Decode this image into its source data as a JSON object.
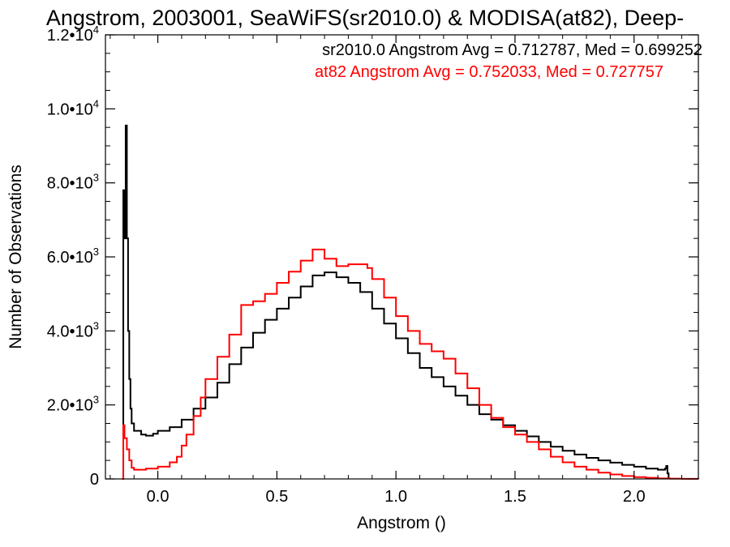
{
  "chart_data": {
    "type": "line",
    "title": "Angstrom, 2003001, SeaWiFS(sr2010.0) & MODISA(at82), Deep-",
    "xlabel": "Angstrom ()",
    "ylabel": "Number of Observations",
    "xlim": [
      -0.22,
      2.27
    ],
    "ylim": [
      0,
      12000
    ],
    "x_ticks": [
      {
        "value": 0.0,
        "label": "0.0"
      },
      {
        "value": 0.5,
        "label": "0.5"
      },
      {
        "value": 1.0,
        "label": "1.0"
      },
      {
        "value": 1.5,
        "label": "1.5"
      },
      {
        "value": 2.0,
        "label": "2.0"
      }
    ],
    "y_ticks": [
      {
        "value": 0,
        "label": "0",
        "mantissa": "",
        "exponent": ""
      },
      {
        "value": 2000,
        "label": "",
        "mantissa": "2.0•10",
        "exponent": "3"
      },
      {
        "value": 4000,
        "label": "",
        "mantissa": "4.0•10",
        "exponent": "3"
      },
      {
        "value": 6000,
        "label": "",
        "mantissa": "6.0•10",
        "exponent": "3"
      },
      {
        "value": 8000,
        "label": "",
        "mantissa": "8.0•10",
        "exponent": "3"
      },
      {
        "value": 10000,
        "label": "",
        "mantissa": "1.0•10",
        "exponent": "4"
      },
      {
        "value": 12000,
        "label": "",
        "mantissa": "1.2•10",
        "exponent": "4"
      }
    ],
    "grid": false,
    "legend_position": "top-right",
    "annotations": [
      {
        "text": "sr2010.0 Angstrom Avg = 0.712787, Med = 0.699252",
        "color": "#000000"
      },
      {
        "text": "at82 Angstrom Avg = 0.752033, Med = 0.727757",
        "color": "#ff0000"
      }
    ],
    "series": [
      {
        "color": "#000000",
        "step": true,
        "points": [
          [
            -0.15,
            0
          ],
          [
            -0.145,
            7800
          ],
          [
            -0.14,
            6500
          ],
          [
            -0.135,
            9550
          ],
          [
            -0.13,
            6500
          ],
          [
            -0.125,
            4000
          ],
          [
            -0.12,
            2700
          ],
          [
            -0.115,
            1900
          ],
          [
            -0.11,
            1500
          ],
          [
            -0.1,
            1300
          ],
          [
            -0.07,
            1200
          ],
          [
            -0.05,
            1170
          ],
          [
            -0.02,
            1220
          ],
          [
            0.0,
            1300
          ],
          [
            0.05,
            1400
          ],
          [
            0.1,
            1600
          ],
          [
            0.15,
            1900
          ],
          [
            0.2,
            2200
          ],
          [
            0.25,
            2600
          ],
          [
            0.3,
            3100
          ],
          [
            0.35,
            3550
          ],
          [
            0.4,
            3950
          ],
          [
            0.45,
            4300
          ],
          [
            0.5,
            4600
          ],
          [
            0.55,
            4900
          ],
          [
            0.6,
            5200
          ],
          [
            0.65,
            5500
          ],
          [
            0.7,
            5580
          ],
          [
            0.75,
            5450
          ],
          [
            0.8,
            5300
          ],
          [
            0.85,
            5050
          ],
          [
            0.9,
            4600
          ],
          [
            0.95,
            4200
          ],
          [
            1.0,
            3800
          ],
          [
            1.05,
            3400
          ],
          [
            1.1,
            3000
          ],
          [
            1.15,
            2750
          ],
          [
            1.2,
            2500
          ],
          [
            1.25,
            2250
          ],
          [
            1.3,
            2000
          ],
          [
            1.35,
            1750
          ],
          [
            1.4,
            1600
          ],
          [
            1.45,
            1450
          ],
          [
            1.5,
            1300
          ],
          [
            1.55,
            1150
          ],
          [
            1.6,
            1000
          ],
          [
            1.65,
            870
          ],
          [
            1.7,
            760
          ],
          [
            1.75,
            660
          ],
          [
            1.8,
            570
          ],
          [
            1.85,
            500
          ],
          [
            1.9,
            440
          ],
          [
            1.95,
            380
          ],
          [
            2.0,
            330
          ],
          [
            2.05,
            280
          ],
          [
            2.1,
            250
          ],
          [
            2.13,
            280
          ],
          [
            2.135,
            350
          ],
          [
            2.14,
            150
          ],
          [
            2.145,
            0
          ]
        ]
      },
      {
        "color": "#ff0000",
        "step": true,
        "points": [
          [
            -0.15,
            0
          ],
          [
            -0.145,
            1450
          ],
          [
            -0.14,
            1100
          ],
          [
            -0.13,
            800
          ],
          [
            -0.12,
            500
          ],
          [
            -0.11,
            300
          ],
          [
            -0.1,
            250
          ],
          [
            -0.05,
            280
          ],
          [
            0.0,
            330
          ],
          [
            0.05,
            450
          ],
          [
            0.08,
            600
          ],
          [
            0.1,
            900
          ],
          [
            0.12,
            1200
          ],
          [
            0.15,
            1700
          ],
          [
            0.18,
            2200
          ],
          [
            0.2,
            2700
          ],
          [
            0.25,
            3300
          ],
          [
            0.3,
            3900
          ],
          [
            0.35,
            4700
          ],
          [
            0.4,
            4800
          ],
          [
            0.45,
            5000
          ],
          [
            0.5,
            5300
          ],
          [
            0.55,
            5600
          ],
          [
            0.6,
            5900
          ],
          [
            0.65,
            6200
          ],
          [
            0.7,
            5950
          ],
          [
            0.75,
            5750
          ],
          [
            0.8,
            5800
          ],
          [
            0.85,
            5800
          ],
          [
            0.88,
            5700
          ],
          [
            0.9,
            5400
          ],
          [
            0.95,
            4900
          ],
          [
            1.0,
            4400
          ],
          [
            1.05,
            4000
          ],
          [
            1.1,
            3650
          ],
          [
            1.15,
            3450
          ],
          [
            1.2,
            3250
          ],
          [
            1.25,
            2850
          ],
          [
            1.3,
            2450
          ],
          [
            1.35,
            2000
          ],
          [
            1.4,
            1650
          ],
          [
            1.45,
            1400
          ],
          [
            1.5,
            1200
          ],
          [
            1.55,
            1000
          ],
          [
            1.6,
            800
          ],
          [
            1.65,
            600
          ],
          [
            1.7,
            450
          ],
          [
            1.75,
            330
          ],
          [
            1.8,
            250
          ],
          [
            1.85,
            170
          ],
          [
            1.9,
            120
          ],
          [
            1.95,
            80
          ],
          [
            2.0,
            50
          ],
          [
            2.05,
            30
          ],
          [
            2.1,
            15
          ],
          [
            2.15,
            8
          ],
          [
            2.2,
            3
          ],
          [
            2.27,
            0
          ]
        ]
      }
    ]
  }
}
